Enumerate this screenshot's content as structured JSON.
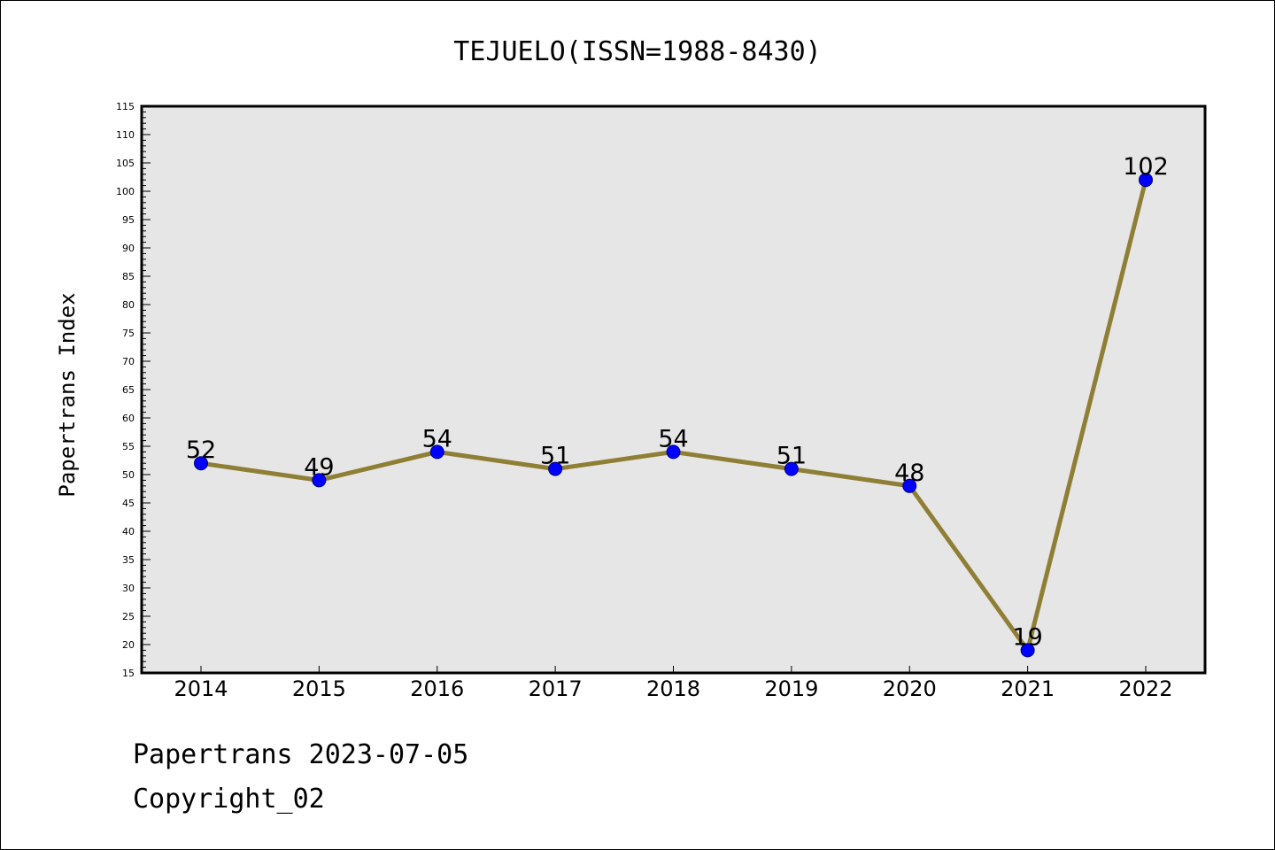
{
  "chart_data": {
    "type": "line",
    "title": "TEJUELO(ISSN=1988-8430)",
    "xlabel": "",
    "ylabel": "Papertrans Index",
    "categories": [
      "2014",
      "2015",
      "2016",
      "2017",
      "2018",
      "2019",
      "2020",
      "2021",
      "2022"
    ],
    "series": [
      {
        "values": [
          52,
          49,
          54,
          51,
          54,
          51,
          48,
          19,
          102
        ]
      }
    ],
    "ylim": [
      15,
      115
    ],
    "ytick_step": 5,
    "grid": false,
    "legend": "none",
    "colors": {
      "plot_background": "#e6e6e6",
      "line": "#8f7f35",
      "marker": "#0000ff",
      "marker_edge": "#000080"
    }
  },
  "footer": {
    "line1": "Papertrans 2023-07-05",
    "line2": "Copyright_02"
  }
}
